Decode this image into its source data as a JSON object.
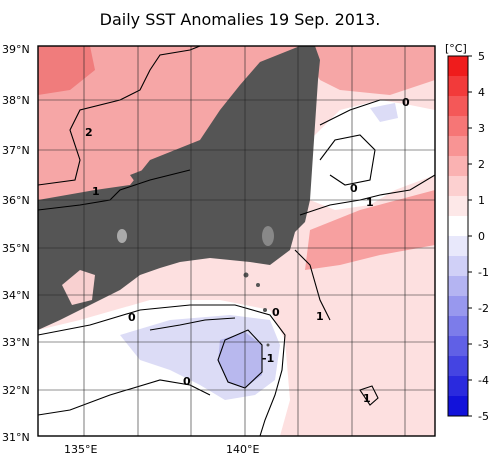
{
  "title": "Daily SST Anomalies 19 Sep. 2013.",
  "lat_labels": [
    "39°N",
    "38°N",
    "37°N",
    "36°N",
    "35°N",
    "34°N",
    "33°N",
    "32°N",
    "31°N"
  ],
  "lon_labels": [
    "135°E",
    "140°E"
  ],
  "contour_labels": [
    "2",
    "1",
    "0",
    "0",
    "1",
    "0",
    "1",
    "0",
    "-1",
    "0",
    "1"
  ],
  "colorbar": {
    "unit": "[°C]",
    "tick_labels": [
      "5",
      "4",
      "3",
      "2",
      "1",
      "0",
      "-1",
      "-2",
      "-3",
      "-4",
      "-5"
    ],
    "colors": [
      "#ef1c1c",
      "#f23a3a",
      "#f45858",
      "#f67676",
      "#f89494",
      "#fab2b2",
      "#fcd0d0",
      "#fde8e8",
      "#ffffff",
      "#e8e8fb",
      "#d0d0f7",
      "#b4b4f2",
      "#9898ee",
      "#7c7cea",
      "#6060e6",
      "#4444e2",
      "#2a2ade",
      "#1212da"
    ]
  },
  "colors": {
    "land": "#555555",
    "frame": "#000000"
  }
}
